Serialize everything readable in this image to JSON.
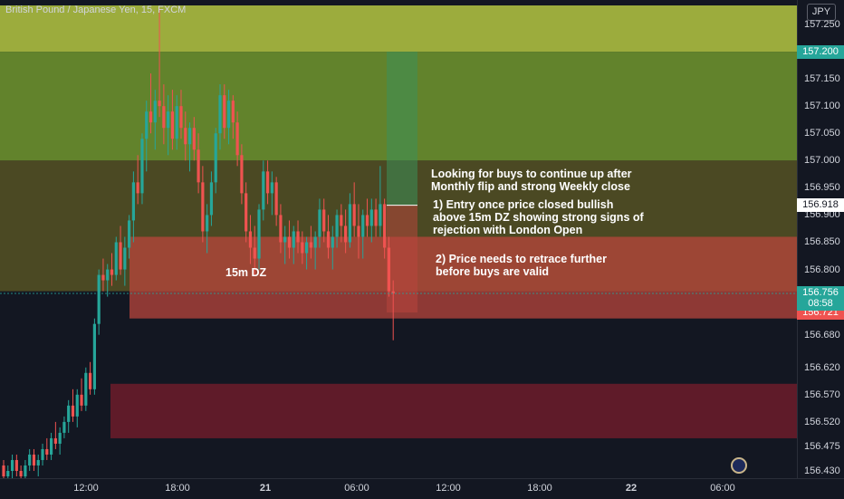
{
  "symbol": {
    "title": "British Pound / Japanese Yen, 15, FXCM"
  },
  "currency": "JPY",
  "price_axis": [
    "157.250",
    "157.200",
    "157.150",
    "157.100",
    "157.050",
    "157.000",
    "156.950",
    "156.918",
    "156.900",
    "156.850",
    "156.800",
    "156.756",
    "08:58",
    "156.721",
    "156.680",
    "156.620",
    "156.570",
    "156.520",
    "156.475",
    "156.430"
  ],
  "price_ticks": [
    {
      "label": "157.250",
      "v": 157.25
    },
    {
      "label": "157.150",
      "v": 157.15
    },
    {
      "label": "157.100",
      "v": 157.1
    },
    {
      "label": "157.050",
      "v": 157.05
    },
    {
      "label": "157.000",
      "v": 157.0
    },
    {
      "label": "156.950",
      "v": 156.95
    },
    {
      "label": "156.900",
      "v": 156.9
    },
    {
      "label": "156.850",
      "v": 156.85
    },
    {
      "label": "156.800",
      "v": 156.8
    },
    {
      "label": "156.680",
      "v": 156.68
    },
    {
      "label": "156.620",
      "v": 156.62
    },
    {
      "label": "156.570",
      "v": 156.57
    },
    {
      "label": "156.520",
      "v": 156.52
    },
    {
      "label": "156.475",
      "v": 156.475
    },
    {
      "label": "156.430",
      "v": 156.43
    }
  ],
  "price_tags": {
    "target": {
      "label": "157.200",
      "v": 157.2,
      "color": "#26a69a"
    },
    "entry": {
      "label": "156.918",
      "v": 156.918,
      "color": "#ffffff"
    },
    "last": {
      "label": "156.756",
      "timer": "08:58",
      "v": 156.756,
      "color": "#26a69a"
    },
    "stop": {
      "label": "156.721",
      "v": 156.721,
      "color": "#ef5350"
    }
  },
  "time_ticks": [
    "12:00",
    "18:00",
    "21",
    "06:00",
    "12:00",
    "18:00",
    "22",
    "06:00"
  ],
  "annotations": {
    "zone": "15m DZ",
    "note1_line1": "Looking for buys to continue up after",
    "note1_line2": "Monthly flip and strong Weekly close",
    "note2_line1": "1) Entry once price closed bullish",
    "note2_line2": "above 15m DZ showing strong signs of",
    "note2_line3": "rejection with London Open",
    "note3_line1": "2) Price needs to retrace further",
    "note3_line2": "before buys are valid"
  },
  "colors": {
    "up": "#26a69a",
    "down": "#ef5350",
    "background": "#131722"
  },
  "chart_data": {
    "type": "candlestick",
    "title": "British Pound / Japanese Yen, 15, FXCM",
    "ylim": [
      156.4,
      157.3
    ],
    "zones": [
      {
        "name": "zone-yellow",
        "from": 157.2,
        "to": 157.29,
        "color": "#a3b43f"
      },
      {
        "name": "zone-green",
        "from": 157.0,
        "to": 157.2,
        "color": "#6b8f2e"
      },
      {
        "name": "zone-olive",
        "from": 156.76,
        "to": 157.0,
        "color": "#524f24"
      },
      {
        "name": "zone-15m-dz",
        "from": 156.71,
        "to": 156.86,
        "color": "#b8463c"
      },
      {
        "name": "zone-lower-dz",
        "from": 156.49,
        "to": 156.59,
        "color": "#7a1e2c"
      }
    ],
    "candles": [
      [
        156.44,
        156.45,
        156.41,
        156.42
      ],
      [
        156.42,
        156.44,
        156.4,
        156.43
      ],
      [
        156.43,
        156.46,
        156.41,
        156.45
      ],
      [
        156.45,
        156.46,
        156.42,
        156.43
      ],
      [
        156.43,
        156.44,
        156.41,
        156.42
      ],
      [
        156.42,
        156.45,
        156.41,
        156.44
      ],
      [
        156.44,
        156.47,
        156.43,
        156.46
      ],
      [
        156.46,
        156.47,
        156.43,
        156.44
      ],
      [
        156.44,
        156.46,
        156.42,
        156.45
      ],
      [
        156.45,
        156.48,
        156.44,
        156.47
      ],
      [
        156.47,
        156.49,
        156.45,
        156.46
      ],
      [
        156.46,
        156.5,
        156.45,
        156.49
      ],
      [
        156.49,
        156.52,
        156.47,
        156.48
      ],
      [
        156.48,
        156.51,
        156.46,
        156.5
      ],
      [
        156.5,
        156.53,
        156.49,
        156.52
      ],
      [
        156.52,
        156.56,
        156.5,
        156.55
      ],
      [
        156.55,
        156.58,
        156.52,
        156.53
      ],
      [
        156.53,
        156.58,
        156.51,
        156.57
      ],
      [
        156.57,
        156.6,
        156.54,
        156.55
      ],
      [
        156.55,
        156.62,
        156.54,
        156.61
      ],
      [
        156.61,
        156.63,
        156.57,
        156.58
      ],
      [
        156.58,
        156.71,
        156.57,
        156.7
      ],
      [
        156.7,
        156.8,
        156.68,
        156.79
      ],
      [
        156.79,
        156.82,
        156.76,
        156.78
      ],
      [
        156.78,
        156.81,
        156.75,
        156.8
      ],
      [
        156.8,
        156.83,
        156.77,
        156.79
      ],
      [
        156.79,
        156.86,
        156.78,
        156.85
      ],
      [
        156.85,
        156.88,
        156.79,
        156.8
      ],
      [
        156.8,
        156.86,
        156.77,
        156.84
      ],
      [
        156.84,
        156.9,
        156.82,
        156.89
      ],
      [
        156.89,
        156.98,
        156.85,
        156.96
      ],
      [
        156.96,
        157.01,
        156.92,
        156.94
      ],
      [
        156.94,
        157.05,
        156.92,
        157.04
      ],
      [
        157.04,
        157.11,
        156.98,
        157.09
      ],
      [
        157.09,
        157.16,
        157.05,
        157.07
      ],
      [
        157.07,
        157.13,
        157.02,
        157.11
      ],
      [
        157.11,
        157.28,
        157.08,
        157.1
      ],
      [
        157.1,
        157.14,
        157.03,
        157.06
      ],
      [
        157.06,
        157.12,
        157.01,
        157.09
      ],
      [
        157.09,
        157.13,
        157.02,
        157.04
      ],
      [
        157.04,
        157.12,
        157.02,
        157.1
      ],
      [
        157.1,
        157.13,
        157.04,
        157.06
      ],
      [
        157.06,
        157.09,
        157.0,
        157.03
      ],
      [
        157.03,
        157.07,
        156.98,
        157.06
      ],
      [
        157.06,
        157.08,
        157.0,
        157.02
      ],
      [
        157.02,
        157.05,
        156.94,
        156.96
      ],
      [
        156.96,
        156.99,
        156.85,
        156.87
      ],
      [
        156.87,
        156.92,
        156.83,
        156.9
      ],
      [
        156.9,
        156.98,
        156.88,
        156.96
      ],
      [
        156.96,
        157.06,
        156.94,
        157.05
      ],
      [
        157.05,
        157.14,
        157.02,
        157.12
      ],
      [
        157.12,
        157.14,
        157.04,
        157.06
      ],
      [
        157.06,
        157.13,
        157.03,
        157.11
      ],
      [
        157.11,
        157.12,
        157.04,
        157.07
      ],
      [
        157.07,
        157.09,
        156.99,
        157.01
      ],
      [
        157.01,
        157.03,
        156.92,
        156.94
      ],
      [
        156.94,
        156.96,
        156.85,
        156.87
      ],
      [
        156.87,
        156.9,
        156.81,
        156.84
      ],
      [
        156.84,
        156.88,
        156.79,
        156.82
      ],
      [
        156.82,
        156.92,
        156.8,
        156.91
      ],
      [
        156.91,
        157.0,
        156.89,
        156.98
      ],
      [
        156.98,
        157.0,
        156.92,
        156.94
      ],
      [
        156.94,
        156.98,
        156.9,
        156.96
      ],
      [
        156.96,
        156.97,
        156.88,
        156.9
      ],
      [
        156.9,
        156.92,
        156.83,
        156.85
      ],
      [
        156.85,
        156.88,
        156.81,
        156.86
      ],
      [
        156.86,
        156.89,
        156.82,
        156.84
      ],
      [
        156.84,
        156.88,
        156.81,
        156.87
      ],
      [
        156.87,
        156.89,
        156.83,
        156.85
      ],
      [
        156.85,
        156.87,
        156.81,
        156.83
      ],
      [
        156.83,
        156.86,
        156.8,
        156.85
      ],
      [
        156.85,
        156.88,
        156.82,
        156.84
      ],
      [
        156.84,
        156.87,
        156.8,
        156.86
      ],
      [
        156.86,
        156.93,
        156.84,
        156.91
      ],
      [
        156.91,
        156.93,
        156.85,
        156.87
      ],
      [
        156.87,
        156.9,
        156.82,
        156.84
      ],
      [
        156.84,
        156.88,
        156.8,
        156.86
      ],
      [
        156.86,
        156.91,
        156.84,
        156.9
      ],
      [
        156.9,
        156.92,
        156.85,
        156.88
      ],
      [
        156.88,
        156.91,
        156.83,
        156.85
      ],
      [
        156.85,
        156.94,
        156.84,
        156.92
      ],
      [
        156.92,
        156.96,
        156.86,
        156.88
      ],
      [
        156.88,
        156.92,
        156.82,
        156.86
      ],
      [
        156.86,
        156.91,
        156.82,
        156.9
      ],
      [
        156.9,
        156.93,
        156.86,
        156.88
      ],
      [
        156.88,
        156.93,
        156.85,
        156.91
      ],
      [
        156.91,
        156.93,
        156.86,
        156.88
      ],
      [
        156.88,
        156.99,
        156.86,
        156.92
      ],
      [
        156.92,
        156.93,
        156.82,
        156.84
      ],
      [
        156.84,
        156.86,
        156.75,
        156.76
      ],
      [
        156.76,
        156.78,
        156.67,
        156.756
      ]
    ]
  }
}
